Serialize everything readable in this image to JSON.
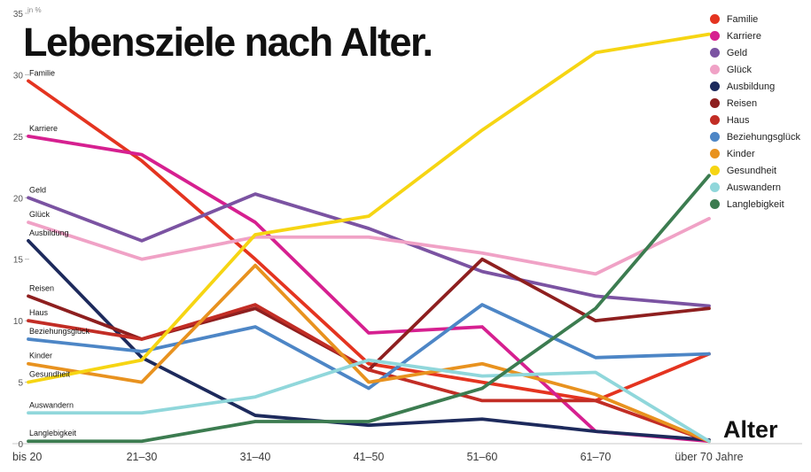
{
  "chart_data": {
    "type": "line",
    "title": "Lebensziele nach Alter.",
    "unit_label": "in %",
    "xlabel": "Alter",
    "categories": [
      "bis 20",
      "21–30",
      "31–40",
      "41–50",
      "51–60",
      "61–70",
      "über 70 Jahre"
    ],
    "ylim": [
      0,
      35
    ],
    "yticks": [
      0,
      5,
      10,
      15,
      20,
      25,
      30,
      35
    ],
    "grid": false,
    "legend_position": "top-right",
    "series": [
      {
        "name": "Familie",
        "color": "#e43420",
        "values": [
          29.5,
          23.0,
          15.0,
          6.5,
          5.0,
          3.5,
          7.3
        ]
      },
      {
        "name": "Karriere",
        "color": "#d62090",
        "values": [
          25.0,
          23.5,
          18.0,
          9.0,
          9.5,
          1.0,
          0.2
        ]
      },
      {
        "name": "Geld",
        "color": "#7b53a2",
        "values": [
          20.0,
          16.5,
          20.3,
          17.5,
          14.0,
          12.0,
          11.2
        ]
      },
      {
        "name": "Glück",
        "color": "#f0a2c6",
        "values": [
          18.0,
          15.0,
          16.8,
          16.8,
          15.5,
          13.8,
          18.3
        ]
      },
      {
        "name": "Ausbildung",
        "color": "#1d2a5c",
        "values": [
          16.5,
          7.0,
          2.3,
          1.5,
          2.0,
          1.0,
          0.3
        ]
      },
      {
        "name": "Reisen",
        "color": "#8e1f1f",
        "values": [
          12.0,
          8.5,
          11.0,
          6.0,
          15.0,
          10.0,
          11.0
        ]
      },
      {
        "name": "Haus",
        "color": "#c22d25",
        "values": [
          10.0,
          8.5,
          11.3,
          6.0,
          3.5,
          3.5,
          0.2
        ]
      },
      {
        "name": "Beziehungsglück",
        "color": "#4d86c6",
        "values": [
          8.5,
          7.5,
          9.5,
          4.5,
          11.3,
          7.0,
          7.3
        ]
      },
      {
        "name": "Kinder",
        "color": "#e8921f",
        "values": [
          6.5,
          5.0,
          14.5,
          5.0,
          6.5,
          4.0,
          0.2
        ]
      },
      {
        "name": "Gesundheit",
        "color": "#f6d513",
        "values": [
          5.0,
          6.8,
          17.0,
          18.5,
          25.5,
          31.8,
          33.3
        ]
      },
      {
        "name": "Auswandern",
        "color": "#90d7db",
        "values": [
          2.5,
          2.5,
          3.8,
          6.8,
          5.5,
          5.8,
          0.2
        ]
      },
      {
        "name": "Langlebigkeit",
        "color": "#3c7c50",
        "values": [
          0.2,
          0.2,
          1.8,
          1.8,
          4.5,
          11.0,
          21.8
        ]
      }
    ]
  }
}
